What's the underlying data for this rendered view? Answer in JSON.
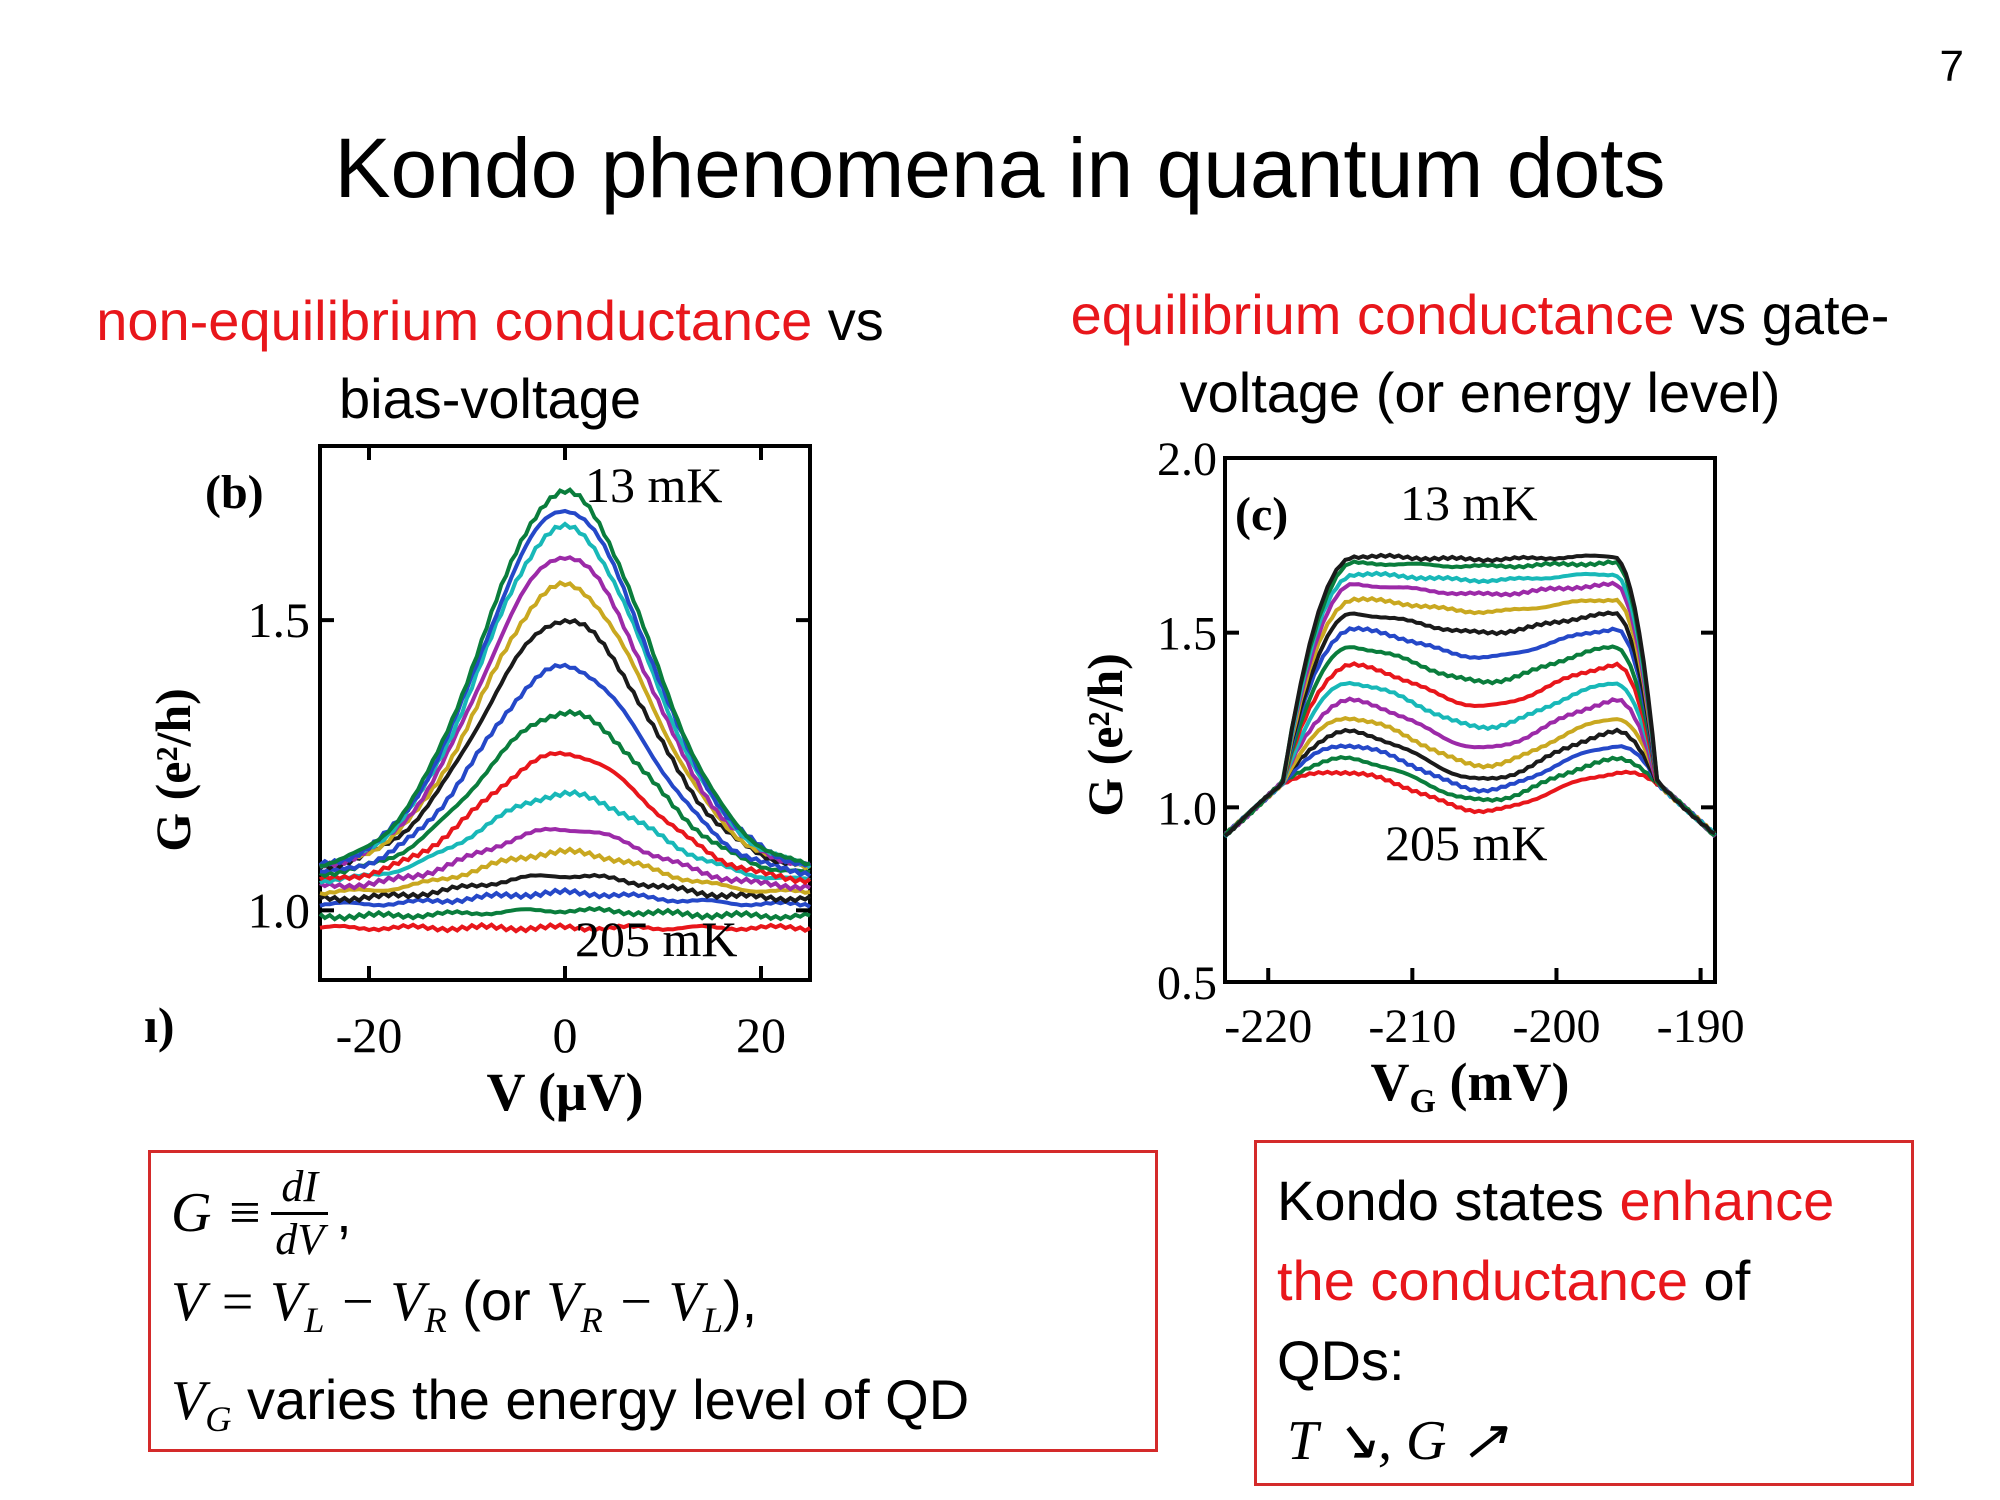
{
  "slide": {
    "number": "7",
    "title": "Kondo phenomena in quantum dots"
  },
  "left_caption": {
    "highlight": "non-equilibrium conductance",
    "rest_line1": " vs",
    "line2": "bias-voltage"
  },
  "right_caption": {
    "highlight": "equilibrium conductance",
    "rest_line1": " vs gate-",
    "line2": "voltage (or energy level)"
  },
  "formula_box": {
    "lhs": "G",
    "equiv": "≡",
    "frac_num": "dI",
    "frac_den": "dV",
    "trail": " ,",
    "line2_math": "V = V",
    "line2_sub_L": "L",
    "line2_minus": " − V",
    "line2_sub_R": "R",
    "line2_paren_open": " (or ",
    "line2_paren_math": "V",
    "line2_paren_sub_R": "R",
    "line2_paren_minus": " − V",
    "line2_paren_sub_L": "L",
    "line2_paren_close": "),",
    "line3_math": "V",
    "line3_sub": "G",
    "line3_text": " varies the energy level of QD"
  },
  "kondo_box": {
    "text1": "Kondo states ",
    "highlight1": "enhance",
    "highlight2": "the conductance",
    "text2": " of",
    "text3": "QDs:",
    "relation": "T ↘, G ↗"
  },
  "chart_data": [
    {
      "type": "line",
      "panel_label": "(b)",
      "xlabel": "V (μV)",
      "ylabel": "G (e²/h)",
      "xlim": [
        -25,
        25
      ],
      "ylim": [
        0.88,
        1.8
      ],
      "xticks": [
        "-20",
        "0",
        "20"
      ],
      "xtick_values": [
        -20,
        0,
        20
      ],
      "yticks": [
        "1.0",
        "1.5"
      ],
      "ytick_values": [
        1.0,
        1.5
      ],
      "annotations": [
        "13 mK",
        "205 mK"
      ],
      "fragment_label": "ı)",
      "colors": [
        "#e8161b",
        "#0a7d3c",
        "#2548c8",
        "#1a1a1a",
        "#c9a820",
        "#9c2aa8",
        "#18b8b8",
        "#e8161b",
        "#0a7d3c",
        "#2548c8",
        "#1a1a1a",
        "#c9a820",
        "#9c2aa8",
        "#18b8b8",
        "#2548c8",
        "#0a7d3c"
      ],
      "series": [
        {
          "peak": 0.97,
          "edge": 0.97
        },
        {
          "peak": 1.0,
          "edge": 0.99
        },
        {
          "peak": 1.03,
          "edge": 1.01
        },
        {
          "peak": 1.06,
          "edge": 1.02
        },
        {
          "peak": 1.1,
          "edge": 1.03
        },
        {
          "peak": 1.14,
          "edge": 1.04
        },
        {
          "peak": 1.2,
          "edge": 1.05
        },
        {
          "peak": 1.27,
          "edge": 1.05
        },
        {
          "peak": 1.34,
          "edge": 1.06
        },
        {
          "peak": 1.42,
          "edge": 1.06
        },
        {
          "peak": 1.5,
          "edge": 1.07
        },
        {
          "peak": 1.56,
          "edge": 1.07
        },
        {
          "peak": 1.61,
          "edge": 1.07
        },
        {
          "peak": 1.66,
          "edge": 1.07
        },
        {
          "peak": 1.69,
          "edge": 1.07
        },
        {
          "peak": 1.72,
          "edge": 1.07
        }
      ]
    },
    {
      "type": "line",
      "panel_label": "(c)",
      "xlabel": "V_G (mV)",
      "xlabel_main": "V",
      "xlabel_sub": "G",
      "xlabel_unit": " (mV)",
      "ylabel": "G (e²/h)",
      "xlim": [
        -223,
        -189
      ],
      "ylim": [
        0.5,
        2.0
      ],
      "xticks": [
        "-220",
        "-210",
        "-200",
        "-190"
      ],
      "xtick_values": [
        -220,
        -210,
        -200,
        -190
      ],
      "yticks": [
        "0.5",
        "1.0",
        "1.5",
        "2.0"
      ],
      "ytick_values": [
        0.5,
        1.0,
        1.5,
        2.0
      ],
      "annotations": [
        "13 mK",
        "205 mK"
      ],
      "colors": [
        "#e8161b",
        "#0a7d3c",
        "#2548c8",
        "#1a1a1a",
        "#c9a820",
        "#9c2aa8",
        "#18b8b8",
        "#e8161b",
        "#0a7d3c",
        "#2548c8",
        "#1a1a1a",
        "#c9a820",
        "#9c2aa8",
        "#18b8b8",
        "#0a7d3c",
        "#1a1a1a"
      ],
      "series": [
        {
          "shoulder": 1.11,
          "valley": 0.99
        },
        {
          "shoulder": 1.15,
          "valley": 1.02
        },
        {
          "shoulder": 1.19,
          "valley": 1.05
        },
        {
          "shoulder": 1.23,
          "valley": 1.08
        },
        {
          "shoulder": 1.27,
          "valley": 1.12
        },
        {
          "shoulder": 1.32,
          "valley": 1.17
        },
        {
          "shoulder": 1.37,
          "valley": 1.23
        },
        {
          "shoulder": 1.42,
          "valley": 1.29
        },
        {
          "shoulder": 1.47,
          "valley": 1.36
        },
        {
          "shoulder": 1.52,
          "valley": 1.43
        },
        {
          "shoulder": 1.56,
          "valley": 1.5
        },
        {
          "shoulder": 1.6,
          "valley": 1.56
        },
        {
          "shoulder": 1.64,
          "valley": 1.61
        },
        {
          "shoulder": 1.67,
          "valley": 1.65
        },
        {
          "shoulder": 1.7,
          "valley": 1.69
        },
        {
          "shoulder": 1.72,
          "valley": 1.71
        }
      ]
    }
  ]
}
